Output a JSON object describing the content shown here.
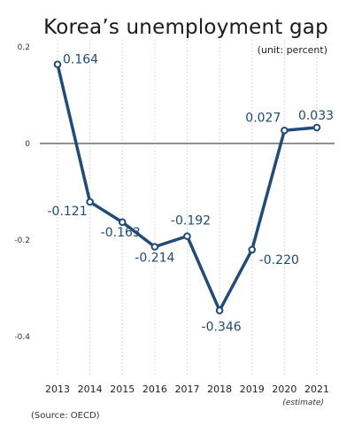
{
  "chart_data": {
    "type": "line",
    "title": "Korea’s unemployment gap",
    "unit_note": "(unit: percent)",
    "source": "(Source: OECD)",
    "categories": [
      "2013",
      "2014",
      "2015",
      "2016",
      "2017",
      "2018",
      "2019",
      "2020",
      "2021"
    ],
    "series": [
      {
        "values": [
          0.164,
          -0.121,
          -0.163,
          -0.214,
          -0.192,
          -0.346,
          -0.22,
          0.027,
          0.033
        ],
        "labels": [
          "0.164",
          "-0.121",
          "-0.163",
          "-0.214",
          "-0.192",
          "-0.346",
          "-0.220",
          "0.027",
          "0.033"
        ],
        "color": "#234b77"
      }
    ],
    "yticks": [
      "0.2",
      "0",
      "-0.2",
      "-0.4"
    ],
    "estimate_note": "(estimate)",
    "ylim": [
      -0.4,
      0.2
    ],
    "grid": "vertical dotted",
    "zero_line": true
  }
}
